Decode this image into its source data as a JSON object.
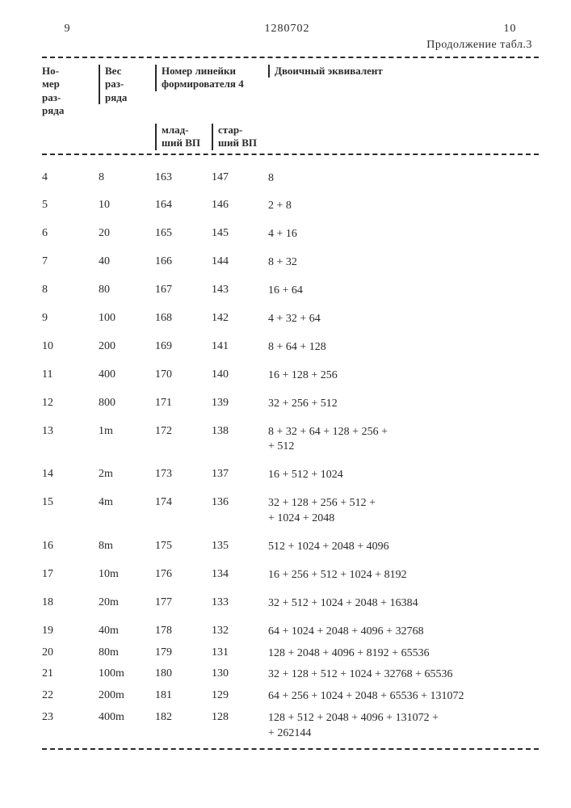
{
  "page": {
    "left_num": "9",
    "doc_num": "1280702",
    "right_num": "10",
    "continuation": "Продолжение табл.3"
  },
  "header": {
    "col1": "Но-\nмер\nраз-\nряда",
    "col2": "Вес\nраз-\nряда",
    "col34_top": "Номер линейки\nформирователя 4",
    "col3_sub": "млад-\nший ВП",
    "col4_sub": "стар-\nший ВП",
    "col5": "Двоичный эквивалент"
  },
  "rows": [
    {
      "n": "4",
      "w": "8",
      "lo": "163",
      "hi": "147",
      "eq": "8"
    },
    {
      "n": "5",
      "w": "10",
      "lo": "164",
      "hi": "146",
      "eq": "2 + 8"
    },
    {
      "n": "6",
      "w": "20",
      "lo": "165",
      "hi": "145",
      "eq": "4 + 16"
    },
    {
      "n": "7",
      "w": "40",
      "lo": "166",
      "hi": "144",
      "eq": "8 + 32"
    },
    {
      "n": "8",
      "w": "80",
      "lo": "167",
      "hi": "143",
      "eq": "16 + 64"
    },
    {
      "n": "9",
      "w": "100",
      "lo": "168",
      "hi": "142",
      "eq": "4 + 32 + 64"
    },
    {
      "n": "10",
      "w": "200",
      "lo": "169",
      "hi": "141",
      "eq": "8 + 64 + 128"
    },
    {
      "n": "11",
      "w": "400",
      "lo": "170",
      "hi": "140",
      "eq": "16 + 128 + 256"
    },
    {
      "n": "12",
      "w": "800",
      "lo": "171",
      "hi": "139",
      "eq": "32 + 256 + 512"
    },
    {
      "n": "13",
      "w": "1m",
      "lo": "172",
      "hi": "138",
      "eq": "8 + 32 + 64 + 128 + 256 +\n+ 512"
    },
    {
      "n": "14",
      "w": "2m",
      "lo": "173",
      "hi": "137",
      "eq": "16 + 512 + 1024"
    },
    {
      "n": "15",
      "w": "4m",
      "lo": "174",
      "hi": "136",
      "eq": "32 + 128 + 256 + 512 +\n+ 1024 + 2048"
    },
    {
      "n": "16",
      "w": "8m",
      "lo": "175",
      "hi": "135",
      "eq": "512 + 1024 + 2048 + 4096"
    },
    {
      "n": "17",
      "w": "10m",
      "lo": "176",
      "hi": "134",
      "eq": "16 + 256 + 512 + 1024 + 8192"
    },
    {
      "n": "18",
      "w": "20m",
      "lo": "177",
      "hi": "133",
      "eq": "32 + 512 + 1024 + 2048 + 16384"
    },
    {
      "n": "19",
      "w": "40m",
      "lo": "178",
      "hi": "132",
      "eq": "64 + 1024 + 2048 + 4096 + 32768"
    },
    {
      "n": "20",
      "w": "80m",
      "lo": "179",
      "hi": "131",
      "eq": "128 + 2048 + 4096 + 8192 + 65536"
    },
    {
      "n": "21",
      "w": "100m",
      "lo": "180",
      "hi": "130",
      "eq": "32 + 128 + 512 + 1024 + 32768 + 65536"
    },
    {
      "n": "22",
      "w": "200m",
      "lo": "181",
      "hi": "129",
      "eq": "64 + 256 + 1024 + 2048 + 65536 + 131072"
    },
    {
      "n": "23",
      "w": "400m",
      "lo": "182",
      "hi": "128",
      "eq": "128 + 512 + 2048 + 4096 + 131072 +\n+ 262144"
    }
  ]
}
